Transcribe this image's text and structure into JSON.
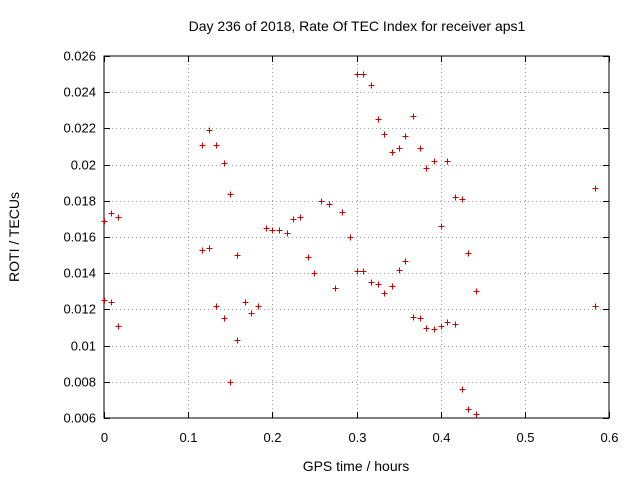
{
  "chart_data": {
    "type": "scatter",
    "title": "Day 236 of 2018, Rate Of TEC Index for receiver aps1",
    "xlabel": "GPS time / hours",
    "ylabel": "ROTI / TECUs",
    "xlim": [
      0,
      0.6
    ],
    "ylim": [
      0.006,
      0.026
    ],
    "grid": true,
    "marker": "+",
    "color": "#cc0000",
    "xticks": [
      0,
      0.1,
      0.2,
      0.3,
      0.4,
      0.5,
      0.6
    ],
    "xtick_labels": [
      "0",
      "0.1",
      "0.2",
      "0.3",
      "0.4",
      "0.5",
      "0.6"
    ],
    "yticks": [
      0.006,
      0.008,
      0.01,
      0.012,
      0.014,
      0.016,
      0.018,
      0.02,
      0.022,
      0.024,
      0.026
    ],
    "ytick_labels": [
      "0.006",
      "0.008",
      "0.01",
      "0.012",
      "0.014",
      "0.016",
      "0.018",
      "0.02",
      "0.022",
      "0.024",
      "0.026"
    ],
    "points": [
      [
        0.0,
        0.0169
      ],
      [
        0.0,
        0.0125
      ],
      [
        0.008,
        0.0173
      ],
      [
        0.008,
        0.0124
      ],
      [
        0.017,
        0.0171
      ],
      [
        0.017,
        0.0111
      ],
      [
        0.117,
        0.0211
      ],
      [
        0.117,
        0.0153
      ],
      [
        0.125,
        0.0219
      ],
      [
        0.125,
        0.0154
      ],
      [
        0.133,
        0.0211
      ],
      [
        0.133,
        0.0122
      ],
      [
        0.142,
        0.0201
      ],
      [
        0.142,
        0.0115
      ],
      [
        0.15,
        0.0184
      ],
      [
        0.15,
        0.008
      ],
      [
        0.158,
        0.015
      ],
      [
        0.158,
        0.0103
      ],
      [
        0.167,
        0.0124
      ],
      [
        0.175,
        0.0118
      ],
      [
        0.183,
        0.0122
      ],
      [
        0.192,
        0.0165
      ],
      [
        0.2,
        0.0164
      ],
      [
        0.208,
        0.0164
      ],
      [
        0.217,
        0.0162
      ],
      [
        0.225,
        0.017
      ],
      [
        0.233,
        0.0171
      ],
      [
        0.242,
        0.0149
      ],
      [
        0.25,
        0.014
      ],
      [
        0.258,
        0.018
      ],
      [
        0.267,
        0.0178
      ],
      [
        0.275,
        0.0132
      ],
      [
        0.283,
        0.0174
      ],
      [
        0.292,
        0.016
      ],
      [
        0.3,
        0.025
      ],
      [
        0.3,
        0.0141
      ],
      [
        0.308,
        0.025
      ],
      [
        0.308,
        0.0141
      ],
      [
        0.317,
        0.0244
      ],
      [
        0.317,
        0.0135
      ],
      [
        0.325,
        0.0225
      ],
      [
        0.325,
        0.0134
      ],
      [
        0.333,
        0.0217
      ],
      [
        0.333,
        0.0129
      ],
      [
        0.342,
        0.0207
      ],
      [
        0.342,
        0.0133
      ],
      [
        0.35,
        0.0209
      ],
      [
        0.35,
        0.0142
      ],
      [
        0.358,
        0.0216
      ],
      [
        0.358,
        0.0147
      ],
      [
        0.367,
        0.0227
      ],
      [
        0.367,
        0.0116
      ],
      [
        0.375,
        0.0209
      ],
      [
        0.375,
        0.0115
      ],
      [
        0.383,
        0.0198
      ],
      [
        0.383,
        0.011
      ],
      [
        0.392,
        0.0202
      ],
      [
        0.392,
        0.0109
      ],
      [
        0.4,
        0.0166
      ],
      [
        0.4,
        0.0111
      ],
      [
        0.408,
        0.0202
      ],
      [
        0.408,
        0.0113
      ],
      [
        0.417,
        0.0182
      ],
      [
        0.417,
        0.0112
      ],
      [
        0.425,
        0.0181
      ],
      [
        0.425,
        0.0076
      ],
      [
        0.433,
        0.0151
      ],
      [
        0.433,
        0.0065
      ],
      [
        0.442,
        0.013
      ],
      [
        0.442,
        0.0062
      ],
      [
        0.583,
        0.0187
      ],
      [
        0.583,
        0.0122
      ]
    ]
  }
}
